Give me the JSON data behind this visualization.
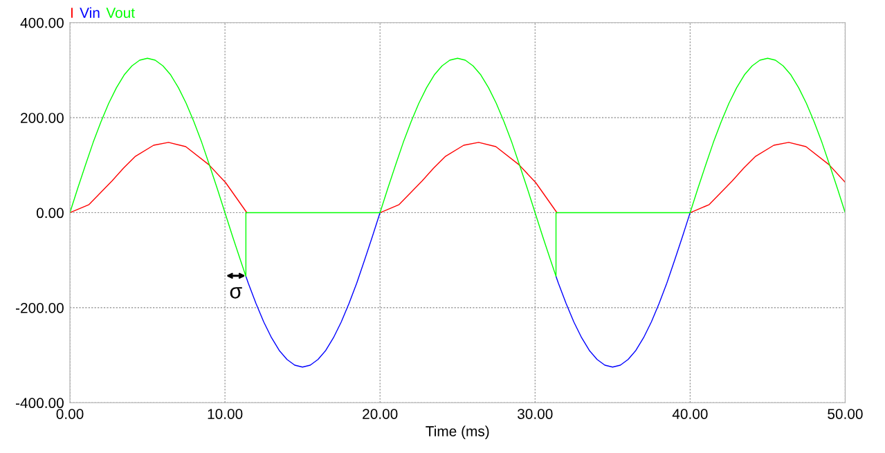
{
  "chart_data": {
    "type": "line",
    "xlabel": "Time (ms)",
    "series": [
      {
        "name": "I",
        "color": "#ff0000",
        "x": [
          0,
          1.23,
          2.72,
          3.46,
          4.2,
          5.4,
          6.36,
          7.47,
          8.96,
          10.05,
          11.41,
          15,
          20,
          21.23,
          22.72,
          23.46,
          24.2,
          25.4,
          26.36,
          27.47,
          28.96,
          30.05,
          31.41,
          35,
          40,
          41.23,
          42.72,
          43.46,
          44.2,
          45.4,
          46.36,
          47.47,
          48.96,
          50
        ],
        "values": [
          0,
          17,
          67,
          94,
          118,
          142,
          148,
          139,
          101,
          63,
          0,
          null,
          0,
          17,
          67,
          94,
          118,
          142,
          148,
          139,
          101,
          63,
          0,
          null,
          0,
          17,
          67,
          94,
          118,
          142,
          148,
          139,
          101,
          64
        ]
      },
      {
        "name": "Vin",
        "color": "#0000ff",
        "x": [
          11.35,
          11.5,
          12,
          12.5,
          13,
          13.5,
          14,
          14.5,
          15,
          15.5,
          16,
          16.5,
          17,
          17.5,
          18,
          18.5,
          19,
          19.5,
          20,
          25,
          31.35,
          31.5,
          32,
          32.5,
          33,
          33.5,
          34,
          34.5,
          35,
          35.5,
          36,
          36.5,
          37,
          37.5,
          38,
          38.5,
          39,
          39.5,
          40
        ],
        "values": [
          -134,
          -148,
          -191,
          -230,
          -263,
          -290,
          -309,
          -321,
          -325,
          -321,
          -309,
          -290,
          -263,
          -230,
          -191,
          -148,
          -100,
          -51,
          0,
          null,
          -134,
          -148,
          -191,
          -230,
          -263,
          -290,
          -309,
          -321,
          -325,
          -321,
          -309,
          -290,
          -263,
          -230,
          -191,
          -148,
          -100,
          -51,
          0
        ]
      },
      {
        "name": "Vout",
        "color": "#00ff00",
        "x": [
          0,
          0.5,
          1,
          1.5,
          2,
          2.5,
          3,
          3.5,
          4,
          4.5,
          5,
          5.5,
          6,
          6.5,
          7,
          7.5,
          8,
          8.5,
          9,
          9.5,
          10,
          10.5,
          11,
          11.35,
          11.35,
          20,
          20.5,
          21,
          21.5,
          22,
          22.5,
          23,
          23.5,
          24,
          24.5,
          25,
          25.5,
          26,
          26.5,
          27,
          27.5,
          28,
          28.5,
          29,
          29.5,
          30,
          30.5,
          31,
          31.35,
          31.35,
          40,
          40.5,
          41,
          41.5,
          42,
          42.5,
          43,
          43.5,
          44,
          44.5,
          45,
          45.5,
          46,
          46.5,
          47,
          47.5,
          48,
          48.5,
          49,
          49.5,
          50
        ],
        "values": [
          0,
          51,
          100,
          148,
          191,
          230,
          263,
          290,
          309,
          321,
          325,
          321,
          309,
          290,
          263,
          230,
          191,
          148,
          100,
          51,
          0,
          -51,
          -100,
          -134,
          0,
          0,
          51,
          100,
          148,
          191,
          230,
          263,
          290,
          309,
          321,
          325,
          321,
          309,
          290,
          263,
          230,
          191,
          148,
          100,
          51,
          0,
          -51,
          -100,
          -134,
          0,
          0,
          51,
          100,
          148,
          191,
          230,
          263,
          290,
          309,
          321,
          325,
          321,
          309,
          290,
          263,
          230,
          191,
          148,
          100,
          51,
          0
        ]
      }
    ],
    "xlim": [
      0,
      50
    ],
    "xticks": [
      {
        "value": 0,
        "label": "0.00"
      },
      {
        "value": 10,
        "label": "10.00"
      },
      {
        "value": 20,
        "label": "20.00"
      },
      {
        "value": 30,
        "label": "30.00"
      },
      {
        "value": 40,
        "label": "40.00"
      },
      {
        "value": 50,
        "label": "50.00"
      }
    ],
    "ylim": [
      -400,
      400
    ],
    "yticks": [
      {
        "value": -400,
        "label": "-400.00"
      },
      {
        "value": -200,
        "label": "-200.00"
      },
      {
        "value": 0,
        "label": "0.00"
      },
      {
        "value": 200,
        "label": "200.00"
      },
      {
        "value": 400,
        "label": "400.00"
      }
    ],
    "annotations": [
      "σ"
    ],
    "grid": true,
    "legend": "top left",
    "line_style": "solid",
    "marker": "none"
  }
}
